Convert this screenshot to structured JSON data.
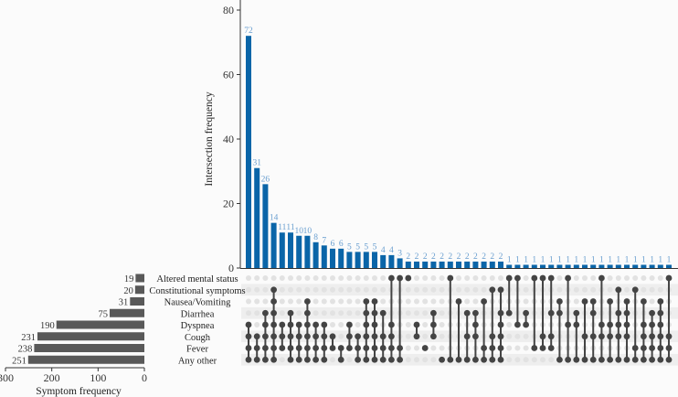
{
  "chart_data": {
    "type": "bar",
    "subtype": "upset",
    "title": "",
    "ylabel": "Intersection frequency",
    "ylim": [
      0,
      80
    ],
    "yticks": [
      0,
      20,
      40,
      60,
      80
    ],
    "grid": false,
    "bar_color": "#0a65a8",
    "bar_label_color": "#6a9fd0",
    "active_dot_color": "#444444",
    "inactive_dot_color": "#e2e2e2",
    "stripe_color": "#eeeeee",
    "sets": [
      "Altered mental status",
      "Constitutional symptoms",
      "Nausea/Vomiting",
      "Diarrhea",
      "Dyspnea",
      "Cough",
      "Fever",
      "Any other"
    ],
    "set_sizes": [
      19,
      20,
      31,
      75,
      190,
      231,
      238,
      251
    ],
    "set_size_axis": {
      "label": "Symptom frequency",
      "ticks": [
        300,
        200,
        100,
        0
      ],
      "range": [
        0,
        300
      ]
    },
    "intersections": [
      {
        "value": 72,
        "sets": [
          4,
          5,
          6,
          7
        ]
      },
      {
        "value": 31,
        "sets": [
          5,
          6,
          7
        ]
      },
      {
        "value": 26,
        "sets": [
          3,
          4,
          5,
          6,
          7
        ]
      },
      {
        "value": 14,
        "sets": [
          1,
          2,
          3,
          4,
          5,
          6,
          7
        ]
      },
      {
        "value": 11,
        "sets": [
          4,
          5,
          6
        ]
      },
      {
        "value": 11,
        "sets": [
          3,
          4,
          5,
          6,
          7
        ]
      },
      {
        "value": 10,
        "sets": [
          4,
          5,
          6,
          7
        ]
      },
      {
        "value": 10,
        "sets": [
          2,
          3,
          4,
          5,
          6,
          7
        ]
      },
      {
        "value": 8,
        "sets": [
          4,
          5,
          6,
          7
        ]
      },
      {
        "value": 7,
        "sets": [
          4,
          5,
          6,
          7
        ]
      },
      {
        "value": 6,
        "sets": [
          5,
          6
        ]
      },
      {
        "value": 6,
        "sets": [
          6,
          7
        ]
      },
      {
        "value": 5,
        "sets": [
          4,
          5,
          6
        ]
      },
      {
        "value": 5,
        "sets": [
          5,
          6,
          7
        ]
      },
      {
        "value": 5,
        "sets": [
          2,
          3,
          4,
          5,
          6,
          7
        ]
      },
      {
        "value": 5,
        "sets": [
          2,
          3,
          4,
          5,
          6,
          7
        ]
      },
      {
        "value": 4,
        "sets": [
          3,
          5,
          6,
          7
        ]
      },
      {
        "value": 4,
        "sets": [
          0,
          4,
          5,
          6,
          7
        ]
      },
      {
        "value": 3,
        "sets": [
          0,
          6,
          7
        ]
      },
      {
        "value": 2,
        "sets": [
          0
        ]
      },
      {
        "value": 2,
        "sets": [
          4,
          5
        ]
      },
      {
        "value": 2,
        "sets": [
          6
        ]
      },
      {
        "value": 2,
        "sets": [
          3,
          4,
          5
        ]
      },
      {
        "value": 2,
        "sets": [
          7
        ]
      },
      {
        "value": 2,
        "sets": [
          0,
          7
        ]
      },
      {
        "value": 2,
        "sets": [
          2,
          7
        ]
      },
      {
        "value": 2,
        "sets": [
          3,
          5,
          7
        ]
      },
      {
        "value": 2,
        "sets": [
          3,
          4,
          5,
          7
        ]
      },
      {
        "value": 2,
        "sets": [
          2,
          6,
          7
        ]
      },
      {
        "value": 2,
        "sets": [
          1,
          5,
          6,
          7
        ]
      },
      {
        "value": 2,
        "sets": [
          1,
          3,
          4,
          5,
          6,
          7
        ]
      },
      {
        "value": 1,
        "sets": [
          0,
          3
        ]
      },
      {
        "value": 1,
        "sets": [
          0,
          4
        ]
      },
      {
        "value": 1,
        "sets": [
          3,
          4
        ]
      },
      {
        "value": 1,
        "sets": [
          0,
          6
        ]
      },
      {
        "value": 1,
        "sets": [
          0,
          5,
          6
        ]
      },
      {
        "value": 1,
        "sets": [
          0,
          3,
          5,
          6
        ]
      },
      {
        "value": 1,
        "sets": [
          2,
          3,
          7
        ]
      },
      {
        "value": 1,
        "sets": [
          0,
          4,
          7
        ]
      },
      {
        "value": 1,
        "sets": [
          3,
          4,
          7
        ]
      },
      {
        "value": 1,
        "sets": [
          2,
          5,
          7
        ]
      },
      {
        "value": 1,
        "sets": [
          2,
          3,
          5,
          7
        ]
      },
      {
        "value": 1,
        "sets": [
          0,
          4,
          5,
          7
        ]
      },
      {
        "value": 1,
        "sets": [
          2,
          4,
          5,
          7
        ]
      },
      {
        "value": 1,
        "sets": [
          1,
          3,
          4,
          5,
          7
        ]
      },
      {
        "value": 1,
        "sets": [
          2,
          3,
          4,
          5,
          7
        ]
      },
      {
        "value": 1,
        "sets": [
          1,
          6,
          7
        ]
      },
      {
        "value": 1,
        "sets": [
          2,
          4,
          5,
          6,
          7
        ]
      },
      {
        "value": 1,
        "sets": [
          3,
          4,
          5,
          6,
          7
        ]
      },
      {
        "value": 1,
        "sets": [
          2,
          3,
          4,
          5,
          6,
          7
        ]
      },
      {
        "value": 1,
        "sets": [
          0,
          5,
          6,
          7
        ]
      }
    ]
  }
}
